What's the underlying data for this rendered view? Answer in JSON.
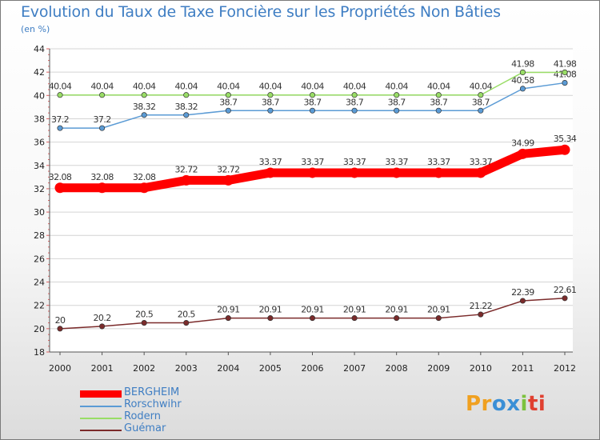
{
  "title": "Evolution du Taux de Taxe Foncière sur les Propriétés Non Bâties",
  "unit": "(en %)",
  "logo": {
    "text": "Proxiti",
    "colors": [
      "#f0a020",
      "#3a8fd6",
      "#7cc23e",
      "#e04030"
    ]
  },
  "chart_data": {
    "type": "line",
    "title": "Evolution du Taux de Taxe Foncière sur les Propriétés Non Bâties",
    "ylabel": "(en %)",
    "xlabel": "",
    "categories": [
      "2000",
      "2001",
      "2002",
      "2003",
      "2004",
      "2005",
      "2006",
      "2007",
      "2008",
      "2009",
      "2010",
      "2011",
      "2012"
    ],
    "ylim": [
      18,
      44
    ],
    "yticks": [
      "18",
      "20",
      "22",
      "24",
      "26",
      "28",
      "30",
      "32",
      "34",
      "36",
      "38",
      "40",
      "42",
      "44"
    ],
    "grid": "horizontal",
    "legend_position": "bottom-left",
    "series": [
      {
        "name": "BERGHEIM",
        "color": "#ff0000",
        "thick": true,
        "values": [
          32.08,
          32.08,
          32.08,
          32.72,
          32.72,
          33.37,
          33.37,
          33.37,
          33.37,
          33.37,
          33.37,
          34.99,
          35.34
        ],
        "labels": [
          "32.08",
          "32.08",
          "32.08",
          "32.72",
          "32.72",
          "33.37",
          "33.37",
          "33.37",
          "33.37",
          "33.37",
          "33.37",
          "34.99",
          "35.34"
        ]
      },
      {
        "name": "Rorschwihr",
        "color": "#5b9bd5",
        "thick": false,
        "values": [
          37.2,
          37.2,
          38.32,
          38.32,
          38.7,
          38.7,
          38.7,
          38.7,
          38.7,
          38.7,
          38.7,
          40.58,
          41.08
        ],
        "labels": [
          "37.2",
          "37.2",
          "38.32",
          "38.32",
          "38.7",
          "38.7",
          "38.7",
          "38.7",
          "38.7",
          "38.7",
          "38.7",
          "40.58",
          "41.08"
        ]
      },
      {
        "name": "Rodern",
        "color": "#99dd66",
        "thick": false,
        "values": [
          40.04,
          40.04,
          40.04,
          40.04,
          40.04,
          40.04,
          40.04,
          40.04,
          40.04,
          40.04,
          40.04,
          41.98,
          41.98
        ],
        "labels": [
          "40.04",
          "40.04",
          "40.04",
          "40.04",
          "40.04",
          "40.04",
          "40.04",
          "40.04",
          "40.04",
          "40.04",
          "40.04",
          "41.98",
          "41.98"
        ]
      },
      {
        "name": "Guémar",
        "color": "#7b2b2b",
        "thick": false,
        "values": [
          20,
          20.2,
          20.5,
          20.5,
          20.91,
          20.91,
          20.91,
          20.91,
          20.91,
          20.91,
          21.22,
          22.39,
          22.61
        ],
        "labels": [
          "20",
          "20.2",
          "20.5",
          "20.5",
          "20.91",
          "20.91",
          "20.91",
          "20.91",
          "20.91",
          "20.91",
          "21.22",
          "22.39",
          "22.61"
        ]
      }
    ]
  }
}
